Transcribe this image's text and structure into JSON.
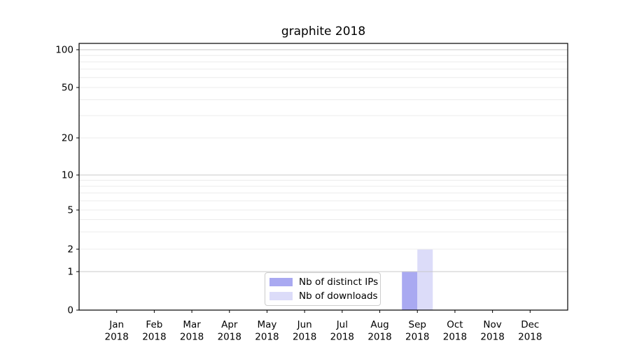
{
  "chart_data": {
    "type": "bar",
    "title": "graphite 2018",
    "year": "2018",
    "categories": [
      "Jan",
      "Feb",
      "Mar",
      "Apr",
      "May",
      "Jun",
      "Jul",
      "Aug",
      "Sep",
      "Oct",
      "Nov",
      "Dec"
    ],
    "series": [
      {
        "name": "Nb of distinct IPs",
        "color": "#a9a9f1",
        "values": [
          0,
          0,
          0,
          0,
          0,
          0,
          0,
          0,
          1,
          0,
          0,
          0
        ]
      },
      {
        "name": "Nb of downloads",
        "color": "#dcdcf9",
        "values": [
          0,
          0,
          0,
          0,
          0,
          0,
          0,
          0,
          2,
          0,
          0,
          0
        ]
      }
    ],
    "y_ticks": [
      0,
      1,
      2,
      5,
      10,
      20,
      50,
      100
    ],
    "y_decade_gridlines": [
      1,
      10,
      100
    ],
    "y_minor_gridlines": [
      2,
      3,
      4,
      5,
      6,
      7,
      8,
      9,
      20,
      30,
      40,
      50,
      60,
      70,
      80,
      90
    ],
    "ylim": [
      0,
      110
    ],
    "y_scale": "symlog",
    "grid": true,
    "legend_position": "lower center",
    "xlabel": "",
    "ylabel": ""
  }
}
